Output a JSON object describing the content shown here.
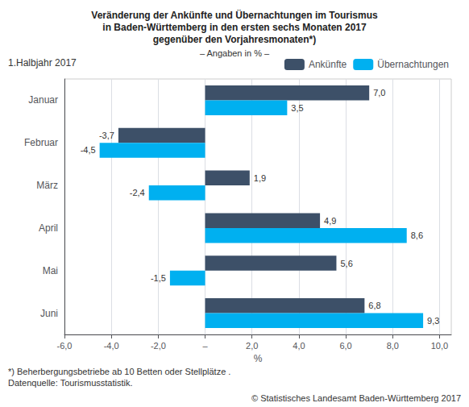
{
  "chart_data": {
    "type": "bar",
    "orientation": "horizontal",
    "title": "Veränderung der Ankünfte und Übernachtungen im Tourismus\nin Baden-Württemberg in den ersten sechs Monaten 2017\ngegenüber den Vorjahresmonaten*)",
    "subtitle": "– Angaben in % –",
    "annotations": [
      {
        "text": "1.Halbjahr 2017"
      },
      {
        "text": "*) Beherbergungsbetriebe ab 10 Betten oder Stellplätze ."
      },
      {
        "text": "Datenquelle: Tourismusstatistik."
      },
      {
        "text": "© Statistisches Landesamt Baden-Württemberg 2017"
      }
    ],
    "categories": [
      "Januar",
      "Februar",
      "März",
      "April",
      "Mai",
      "Juni"
    ],
    "series": [
      {
        "name": "Ankünfte",
        "color": "#3d5068",
        "values": [
          7.0,
          -3.7,
          1.9,
          4.9,
          5.6,
          6.8
        ],
        "value_labels": [
          "7,0",
          "-3,7",
          "1,9",
          "4,9",
          "5,6",
          "6,8"
        ]
      },
      {
        "name": "Übernachtungen",
        "color": "#00b0f0",
        "values": [
          3.5,
          -4.5,
          -2.4,
          8.6,
          -1.5,
          9.3
        ],
        "value_labels": [
          "3,5",
          "-4,5",
          "-2,4",
          "8,6",
          "-1,5",
          "9,3"
        ]
      }
    ],
    "xlabel": "%",
    "xlim": [
      -6.0,
      10.5
    ],
    "xticks": [
      {
        "value": -6.0,
        "label": "-6,0"
      },
      {
        "value": -4.0,
        "label": "-4,0"
      },
      {
        "value": -2.0,
        "label": "-2,0"
      },
      {
        "value": 0.0,
        "label": "–"
      },
      {
        "value": 2.0,
        "label": "2,0"
      },
      {
        "value": 4.0,
        "label": "4,0"
      },
      {
        "value": 6.0,
        "label": "6,0"
      },
      {
        "value": 8.0,
        "label": "8,0"
      },
      {
        "value": 10.0,
        "label": "10,0"
      }
    ],
    "data_labels": true,
    "grid": true,
    "legend": "upper right"
  }
}
